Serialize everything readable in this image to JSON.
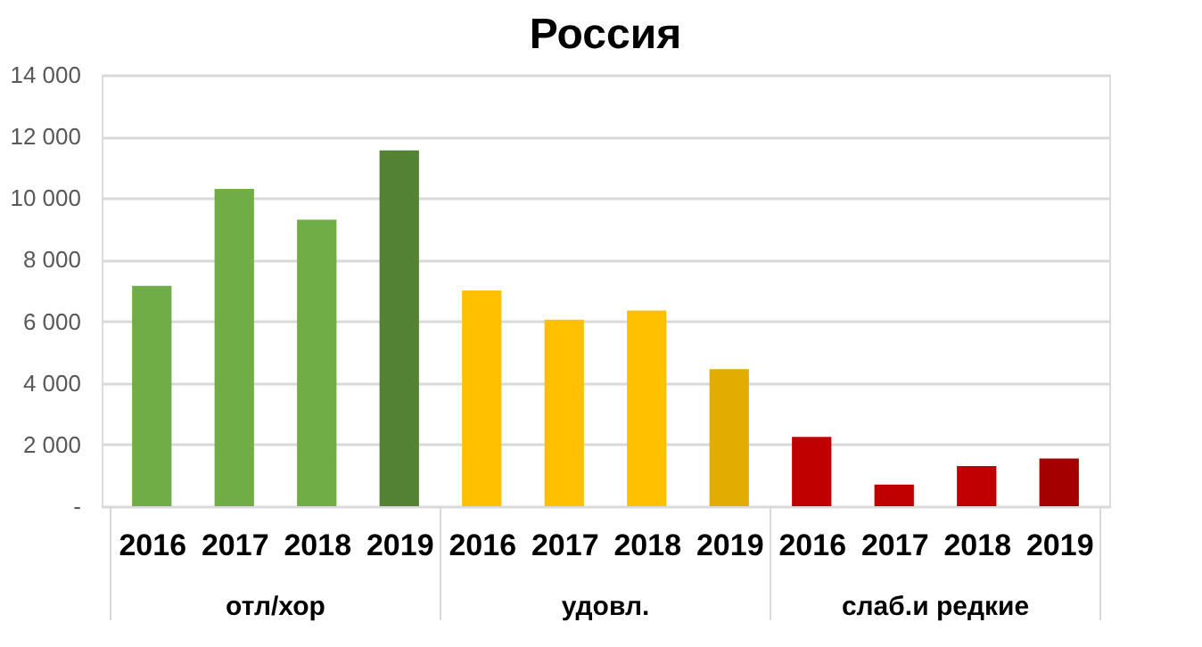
{
  "chart_data": {
    "type": "bar",
    "title": "Россия",
    "categories": [
      "2016",
      "2017",
      "2018",
      "2019",
      "2016",
      "2017",
      "2018",
      "2019",
      "2016",
      "2017",
      "2018",
      "2019"
    ],
    "values": [
      7150,
      10300,
      9300,
      11550,
      7000,
      6050,
      6350,
      4450,
      2250,
      700,
      1300,
      1550
    ],
    "colors": [
      "#70ad47",
      "#70ad47",
      "#70ad47",
      "#548235",
      "#ffc000",
      "#ffc000",
      "#ffc000",
      "#e2ac00",
      "#c00000",
      "#c00000",
      "#c00000",
      "#a50000"
    ],
    "annotations": [
      "отл/хор",
      "удовл.",
      "слаб.и редкие"
    ],
    "ylim": [
      0,
      14000
    ],
    "yticks": [
      {
        "value": 0,
        "label": "-"
      },
      {
        "value": 2000,
        "label": "2 000"
      },
      {
        "value": 4000,
        "label": "4 000"
      },
      {
        "value": 6000,
        "label": "6 000"
      },
      {
        "value": 8000,
        "label": "8 000"
      },
      {
        "value": 10000,
        "label": "10 000"
      },
      {
        "value": 12000,
        "label": "12 000"
      },
      {
        "value": 14000,
        "label": "14 000"
      }
    ],
    "grid": "y"
  }
}
